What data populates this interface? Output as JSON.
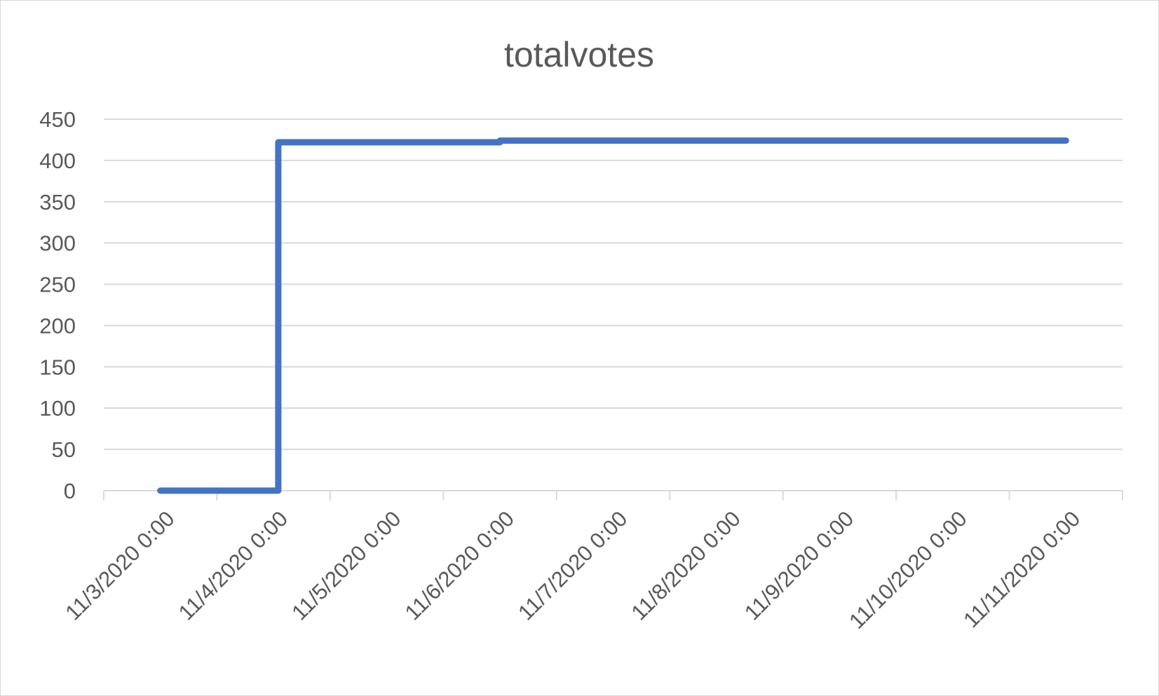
{
  "chart_data": {
    "type": "line",
    "title": "totalvotes",
    "xlabel": "",
    "ylabel": "",
    "categories": [
      "11/3/2020 0:00",
      "11/4/2020 0:00",
      "11/5/2020 0:00",
      "11/6/2020 0:00",
      "11/7/2020 0:00",
      "11/8/2020 0:00",
      "11/9/2020 0:00",
      "11/10/2020 0:00",
      "11/11/2020 0:00"
    ],
    "yticks": [
      0,
      50,
      100,
      150,
      200,
      250,
      300,
      350,
      400,
      450
    ],
    "ylim": [
      0,
      450
    ],
    "grid": true,
    "legend": "none",
    "color": "#4472c4",
    "series": [
      {
        "x": [
          "11/3/2020 12:00",
          "11/4/2020 13:00",
          "11/4/2020 13:00",
          "11/6/2020 12:00",
          "11/6/2020 12:00",
          "11/11/2020 12:00"
        ],
        "values": [
          0,
          0,
          422,
          422,
          424,
          424
        ]
      }
    ]
  }
}
